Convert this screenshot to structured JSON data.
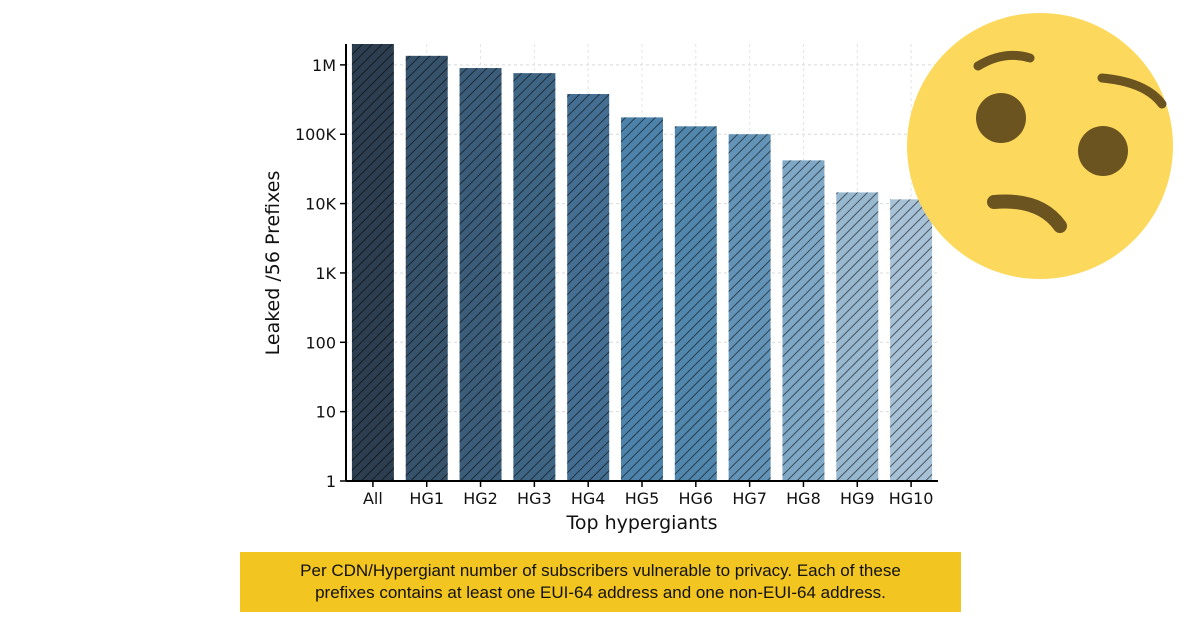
{
  "chart_data": {
    "type": "bar",
    "title": "",
    "xlabel": "Top hypergiants",
    "ylabel": "Leaked /56 Prefixes",
    "y_scale": "log",
    "ylim": [
      1,
      2000000
    ],
    "y_ticks": [
      {
        "value": 1,
        "label": "1"
      },
      {
        "value": 10,
        "label": "10"
      },
      {
        "value": 100,
        "label": "100"
      },
      {
        "value": 1000,
        "label": "1K"
      },
      {
        "value": 10000,
        "label": "10K"
      },
      {
        "value": 100000,
        "label": "100K"
      },
      {
        "value": 1000000,
        "label": "1M"
      }
    ],
    "grid": true,
    "categories": [
      "All",
      "HG1",
      "HG2",
      "HG3",
      "HG4",
      "HG5",
      "HG6",
      "HG7",
      "HG8",
      "HG9",
      "HG10"
    ],
    "values": [
      2000000,
      1350000,
      900000,
      760000,
      380000,
      175000,
      130000,
      100000,
      42000,
      14500,
      11500
    ],
    "bar_colors": [
      "#2c3e4f",
      "#36536b",
      "#3b5d7a",
      "#3f6584",
      "#446f92",
      "#4d83aa",
      "#5287ad",
      "#6394b7",
      "#7ea8c6",
      "#98b8d0",
      "#a7c2d6"
    ],
    "bar_hatch": "diagonal"
  },
  "caption": {
    "line1": "Per CDN/Hypergiant number of subscribers vulnerable to privacy. Each of these",
    "line2": "prefixes contains at least one EUI-64 address and one non-EUI-64 address."
  },
  "emoji": {
    "icon": "confused-face-icon",
    "color": "#fcd95c"
  }
}
